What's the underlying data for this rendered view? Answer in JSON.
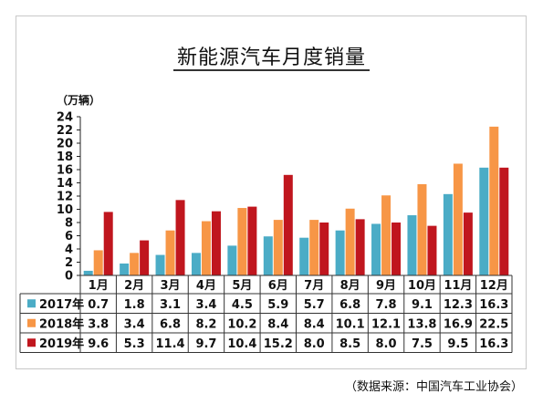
{
  "chart_data": {
    "type": "bar",
    "title": "新能源汽车月度销量",
    "y_unit": "（万辆）",
    "source": "（数据来源：中国汽车工业协会）",
    "categories": [
      "1月",
      "2月",
      "3月",
      "4月",
      "5月",
      "6月",
      "7月",
      "8月",
      "9月",
      "10月",
      "11月",
      "12月"
    ],
    "series": [
      {
        "name": "2017年",
        "color": "#4bacc6",
        "values": [
          0.7,
          1.8,
          3.1,
          3.4,
          4.5,
          5.9,
          5.7,
          6.8,
          7.8,
          9.1,
          12.3,
          16.3
        ]
      },
      {
        "name": "2018年",
        "color": "#f79646",
        "values": [
          3.8,
          3.4,
          6.8,
          8.2,
          10.2,
          8.4,
          8.4,
          10.1,
          12.1,
          13.8,
          16.9,
          22.5
        ]
      },
      {
        "name": "2019年",
        "color": "#c0161e",
        "values": [
          9.6,
          5.3,
          11.4,
          9.7,
          10.4,
          15.2,
          8.0,
          8.5,
          8.0,
          7.5,
          9.5,
          16.3
        ]
      }
    ],
    "table_values": [
      [
        "0.7",
        "1.8",
        "3.1",
        "3.4",
        "4.5",
        "5.9",
        "5.7",
        "6.8",
        "7.8",
        "9.1",
        "12.3",
        "16.3"
      ],
      [
        "3.8",
        "3.4",
        "6.8",
        "8.2",
        "10.2",
        "8.4",
        "8.4",
        "10.1",
        "12.1",
        "13.8",
        "16.9",
        "22.5"
      ],
      [
        "9.6",
        "5.3",
        "11.4",
        "9.7",
        "10.4",
        "15.2",
        "8.0",
        "8.5",
        "8.0",
        "7.5",
        "9.5",
        "16.3"
      ]
    ],
    "yticks": [
      "0",
      "2",
      "4",
      "6",
      "8",
      "10",
      "12",
      "14",
      "16",
      "18",
      "20",
      "22",
      "24"
    ],
    "ylim": [
      0,
      24
    ],
    "grid": false,
    "legend": "data-table-left"
  }
}
